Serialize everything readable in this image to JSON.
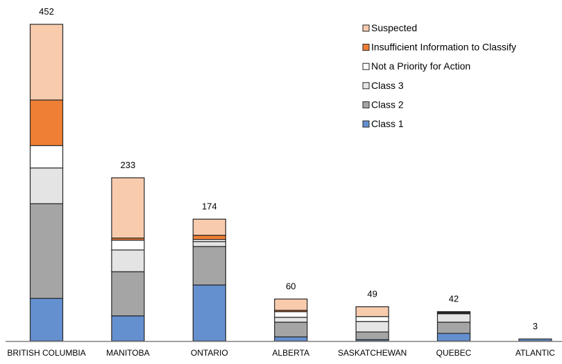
{
  "chart_data": {
    "type": "bar",
    "stacked": true,
    "title": "",
    "xlabel": "",
    "ylabel": "",
    "ylim": [
      0,
      452
    ],
    "grid": false,
    "legend_position": "top-right",
    "categories": [
      "BRITISH COLUMBIA",
      "MANITOBA",
      "ONTARIO",
      "ALBERTA",
      "SASKATCHEWAN",
      "QUEBEC",
      "ATLANTIC"
    ],
    "totals": [
      452,
      233,
      174,
      60,
      49,
      42,
      3
    ],
    "series": [
      {
        "name": "Class 1",
        "color": "#6590d0",
        "values": [
          61,
          36,
          80,
          6,
          2,
          11,
          3
        ]
      },
      {
        "name": "Class 2",
        "color": "#a5a5a5",
        "values": [
          135,
          63,
          55,
          21,
          11,
          16,
          0
        ]
      },
      {
        "name": "Class 3",
        "color": "#e4e4e4",
        "values": [
          51,
          31,
          7,
          7,
          15,
          12,
          0
        ]
      },
      {
        "name": "Not a Priority for Action",
        "color": "#ffffff",
        "values": [
          32,
          14,
          3,
          8,
          7,
          1,
          0
        ]
      },
      {
        "name": "Insufficient Information to Classify",
        "color": "#ef7f34",
        "values": [
          65,
          3,
          6,
          2,
          0,
          1,
          0
        ]
      },
      {
        "name": "Suspected",
        "color": "#f8cbad",
        "values": [
          108,
          86,
          23,
          16,
          14,
          1,
          0
        ]
      }
    ]
  }
}
